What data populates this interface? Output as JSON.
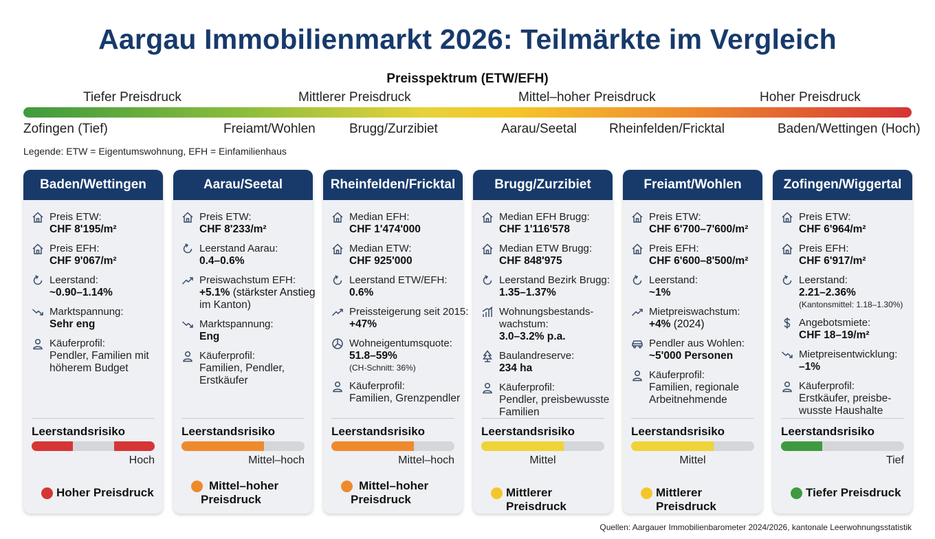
{
  "title": "Aargau Immobilienmarkt 2026: Teilmärkte im Vergleich",
  "spectrum": {
    "title": "Preisspektrum (ETW/EFH)",
    "levels": [
      "Tiefer Preisdruck",
      "Mittlerer Preisdruck",
      "Mittel–hoher Preisdruck",
      "Hoher Preisdruck"
    ],
    "regions": [
      "Zofingen (Tief)",
      "Freiamt/Wohlen",
      "Brugg/Zurzibiet",
      "Aarau/Seetal",
      "Rheinfelden/Fricktal",
      "Baden/Wettingen (Hoch)"
    ],
    "colors": {
      "low": "#3f9a3f",
      "mid": "#f5c62a",
      "midhigh": "#ee8a2e",
      "high": "#d63535"
    }
  },
  "legend": "Legende: ETW = Eigentumswohnung, EFH = Einfamilienhaus",
  "risk_heading": "Leerstandsrisiko",
  "cards": [
    {
      "name": "Baden/Wettingen",
      "items": [
        {
          "icon": "house-icon",
          "label": "Preis ETW:",
          "value": "CHF 8'195/m²"
        },
        {
          "icon": "house-icon",
          "label": "Preis EFH:",
          "value": "CHF 9'067/m²"
        },
        {
          "icon": "refresh-icon",
          "label": "Leerstand:",
          "value": "~0.90–1.14%"
        },
        {
          "icon": "trend-down-icon",
          "label": "Marktspannung:",
          "value": "Sehr eng"
        },
        {
          "icon": "person-icon",
          "label": "Käuferprofil:",
          "text1": "Pendler, Familien mit",
          "text2": "höherem Budget"
        }
      ],
      "risk_label": "Hoch",
      "risk_level": "hoch",
      "pressure": "Hoher Preisdruck",
      "pressure_color": "#d63535"
    },
    {
      "name": "Aarau/Seetal",
      "items": [
        {
          "icon": "house-icon",
          "label": "Preis ETW:",
          "value": "CHF 8'233/m²"
        },
        {
          "icon": "refresh-icon",
          "label": "Leerstand Aarau:",
          "value": "0.4–0.6%"
        },
        {
          "icon": "trend-up-icon",
          "label": "Preiswachstum EFH:",
          "value": "+5.1%",
          "note": " (stärkster Anstieg",
          "text2": "im Kanton)"
        },
        {
          "icon": "trend-down-icon",
          "label": "Marktspannung:",
          "value": "Eng"
        },
        {
          "icon": "person-icon",
          "label": "Käuferprofil:",
          "text1": "Familien, Pendler,",
          "text2": "Erstkäufer"
        }
      ],
      "risk_label": "Mittel–hoch",
      "risk_level": "mittel-hoch",
      "pressure": "Mittel–hoher Preisdruck",
      "pressure_line1": "Mittel–hoher",
      "pressure_line2": "Preisdruck",
      "pressure_color": "#ee8a2e"
    },
    {
      "name": "Rheinfelden/Fricktal",
      "items": [
        {
          "icon": "house-icon",
          "label": "Median EFH:",
          "value": "CHF 1'474'000"
        },
        {
          "icon": "house-icon",
          "label": "Median ETW:",
          "value": "CHF 925'000"
        },
        {
          "icon": "refresh-icon",
          "label": "Leerstand ETW/EFH:",
          "value": "0.6%"
        },
        {
          "icon": "trend-up-icon",
          "label": "Preissteigerung seit 2015:",
          "value": "+47%"
        },
        {
          "icon": "pie-icon",
          "label": "Wohneigentumsquote:",
          "value": "51.8–59%",
          "small": "(CH-Schnitt: 36%)"
        },
        {
          "icon": "person-icon",
          "label": "Käuferprofil:",
          "text1": "Familien, Grenzpendler"
        }
      ],
      "risk_label": "Mittel–hoch",
      "risk_level": "mittel-hoch",
      "pressure": "Mittel–hoher Preisdruck",
      "pressure_line1": "Mittel–hoher",
      "pressure_line2": "Preisdruck",
      "pressure_color": "#ee8a2e"
    },
    {
      "name": "Brugg/Zurzibiet",
      "items": [
        {
          "icon": "house-icon",
          "label": "Median EFH Brugg:",
          "value": "CHF 1'116'578"
        },
        {
          "icon": "house-icon",
          "label": "Median ETW Brugg:",
          "value": "CHF 848'975"
        },
        {
          "icon": "refresh-icon",
          "label": "Leerstand Bezirk Brugg:",
          "value": "1.35–1.37%"
        },
        {
          "icon": "bar-chart-icon",
          "label": "Wohnungsbestands-",
          "label2": "wachstum:",
          "value": "3.0–3.2% p.a."
        },
        {
          "icon": "tree-icon",
          "label": "Baulandreserve:",
          "value": "234 ha"
        },
        {
          "icon": "person-icon",
          "label": "Käuferprofil:",
          "text1": "Pendler, preisbewusste",
          "text2": "Familien"
        }
      ],
      "risk_label": "Mittel",
      "risk_level": "mittel",
      "pressure": "Mittlerer Preisdruck",
      "pressure_color": "#f5c62a"
    },
    {
      "name": "Freiamt/Wohlen",
      "items": [
        {
          "icon": "house-icon",
          "label": "Preis ETW:",
          "value": "CHF 6'700–7'600/m²"
        },
        {
          "icon": "house-icon",
          "label": "Preis EFH:",
          "value": "CHF 6'600–8'500/m²"
        },
        {
          "icon": "refresh-icon",
          "label": "Leerstand:",
          "value": "~1%"
        },
        {
          "icon": "trend-up-icon",
          "label": "Mietpreiswachstum:",
          "value": "+4%",
          "note": " (2024)"
        },
        {
          "icon": "car-icon",
          "label": "Pendler aus Wohlen:",
          "value": "~5'000 Personen"
        },
        {
          "icon": "person-icon",
          "label": "Käuferprofil:",
          "text1": "Familien, regionale",
          "text2": "Arbeitnehmende"
        }
      ],
      "risk_label": "Mittel",
      "risk_level": "mittel",
      "pressure": "Mittlerer Preisdruck",
      "pressure_color": "#f5c62a"
    },
    {
      "name": "Zofingen/Wiggertal",
      "items": [
        {
          "icon": "house-icon",
          "label": "Preis ETW:",
          "value": "CHF 6'964/m²"
        },
        {
          "icon": "house-icon",
          "label": "Preis EFH:",
          "value": "CHF 6'917/m²"
        },
        {
          "icon": "refresh-icon",
          "label": "Leerstand:",
          "value": "2.21–2.36%",
          "small": "(Kantonsmittel: 1.18–1.30%)"
        },
        {
          "icon": "dollar-icon",
          "label": "Angebotsmiete:",
          "value": "CHF 18–19/m²"
        },
        {
          "icon": "trend-down-icon",
          "label": "Mietpreisentwicklung:",
          "value": "–1%"
        },
        {
          "icon": "person-icon",
          "label": "Käuferprofil:",
          "text1": "Erstkäufer, preisbe-",
          "text2": "wusste Haushalte"
        }
      ],
      "risk_label": "Tief",
      "risk_level": "tief",
      "pressure": "Tiefer Preisdruck",
      "pressure_color": "#3f9a3f"
    }
  ],
  "sources": "Quellen: Aargauer Immobilienbarometer 2024/2026, kantonale Leerwohnungsstatistik"
}
